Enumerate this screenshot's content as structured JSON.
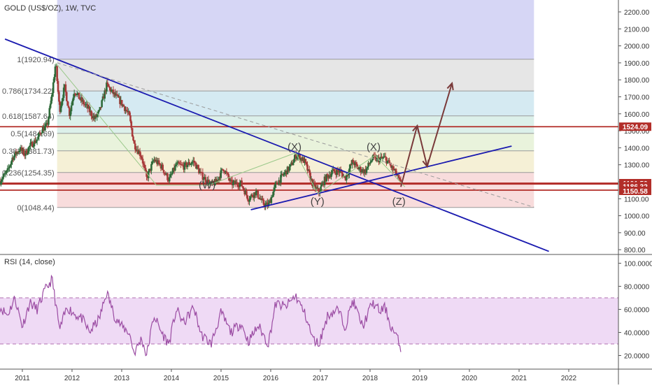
{
  "header": {
    "symbol_label": "GOLD (US$/OZ), 1W, TVC"
  },
  "rsi_pane": {
    "label": "RSI (14, close)"
  },
  "colors": {
    "fib_bands": [
      "#d6d6f5",
      "#e6e6e6",
      "#d5eaf2",
      "#dcf0ea",
      "#e9f3dc",
      "#f5f0d6",
      "#f8dcdc"
    ],
    "fib_line": "#999999",
    "trend_line": "#1a1aaf",
    "dashed_trend": "#9a9a9a",
    "price_band_line": "#b22d28",
    "candle_up": "#2f6b3a",
    "candle_down": "#a83a3a",
    "rsi_line": "#9b4ca3",
    "rsi_band": "#efdaf5",
    "forecast_arrow": "#7a3a3a",
    "wave_label": "#444444"
  },
  "chart_data": [
    {
      "type": "candlestick",
      "title": "GOLD (US$/OZ), 1W, TVC",
      "ylim": [
        780,
        2270
      ],
      "x_range": [
        2010.55,
        2023.0
      ],
      "x_ticks": [
        {
          "x": 2011,
          "label": "2011"
        },
        {
          "x": 2012,
          "label": "2012"
        },
        {
          "x": 2013,
          "label": "2013"
        },
        {
          "x": 2014,
          "label": "2014"
        },
        {
          "x": 2015,
          "label": "2015"
        },
        {
          "x": 2016,
          "label": "2016"
        },
        {
          "x": 2017,
          "label": "2017"
        },
        {
          "x": 2018,
          "label": "2018"
        },
        {
          "x": 2019,
          "label": "2019"
        },
        {
          "x": 2020,
          "label": "2020"
        },
        {
          "x": 2021,
          "label": "2021"
        },
        {
          "x": 2022,
          "label": "2022"
        }
      ],
      "y_ticks": [
        "2200.00",
        "2100.00",
        "2000.00",
        "1900.00",
        "1800.00",
        "1700.00",
        "1600.00",
        "1500.00",
        "1400.00",
        "1300.00",
        "1200.00",
        "1100.00",
        "1000.00",
        "900.00",
        "800.00"
      ],
      "fib_levels": [
        {
          "ratio": "1",
          "price": 1920.94,
          "label": "1(1920.94)"
        },
        {
          "ratio": "0.786",
          "price": 1734.22,
          "label": "0.786(1734.22)"
        },
        {
          "ratio": "0.618",
          "price": 1587.64,
          "label": "0.618(1587.64)"
        },
        {
          "ratio": "0.5",
          "price": 1484.69,
          "label": "0.5(1484.69)"
        },
        {
          "ratio": "0.382",
          "price": 1381.73,
          "label": "0.382(1381.73)"
        },
        {
          "ratio": "0.236",
          "price": 1254.35,
          "label": "0.236(1254.35)"
        },
        {
          "ratio": "0",
          "price": 1048.44,
          "label": "0(1048.44)"
        }
      ],
      "fib_x_range": [
        2011.7,
        2021.3
      ],
      "price_tags": [
        {
          "price": 1524.09,
          "label": "1524.09"
        },
        {
          "price": 1191.59,
          "label": "1191.59"
        },
        {
          "price": 1186.32,
          "label": "1186.32"
        },
        {
          "price": 1150.58,
          "label": "1150.58"
        }
      ],
      "trend_lines": [
        {
          "x1": 2010.65,
          "y1": 2040,
          "x2": 2021.6,
          "y2": 790,
          "style": "solid"
        },
        {
          "x1": 2015.6,
          "y1": 1035,
          "x2": 2020.85,
          "y2": 1410,
          "style": "solid"
        },
        {
          "x1": 2011.7,
          "y1": 1900,
          "x2": 2021.3,
          "y2": 1050,
          "style": "dashed"
        }
      ],
      "wave_path": [
        {
          "x": 2011.67,
          "y": 1900
        },
        {
          "x": 2013.7,
          "y": 1180
        },
        {
          "x": 2014.75,
          "y": 1180
        },
        {
          "x": 2016.5,
          "y": 1370
        },
        {
          "x": 2016.95,
          "y": 1130
        },
        {
          "x": 2018.1,
          "y": 1355
        },
        {
          "x": 2018.7,
          "y": 1170
        }
      ],
      "forecast_path": [
        {
          "x": 2018.62,
          "y": 1170
        },
        {
          "x": 2018.95,
          "y": 1530
        },
        {
          "x": 2019.15,
          "y": 1290
        },
        {
          "x": 2019.65,
          "y": 1780
        }
      ],
      "wave_labels": [
        {
          "x": 2014.72,
          "y": 1160,
          "label": "(W)"
        },
        {
          "x": 2016.48,
          "y": 1385,
          "label": "(X)"
        },
        {
          "x": 2016.94,
          "y": 1065,
          "label": "(Y)"
        },
        {
          "x": 2018.07,
          "y": 1385,
          "label": "(X)"
        },
        {
          "x": 2018.58,
          "y": 1065,
          "label": "(Z)"
        }
      ],
      "price_series": [
        {
          "x": 2010.55,
          "y": 1205
        },
        {
          "x": 2010.7,
          "y": 1260
        },
        {
          "x": 2010.8,
          "y": 1340
        },
        {
          "x": 2010.95,
          "y": 1395
        },
        {
          "x": 2011.05,
          "y": 1360
        },
        {
          "x": 2011.15,
          "y": 1410
        },
        {
          "x": 2011.3,
          "y": 1450
        },
        {
          "x": 2011.4,
          "y": 1510
        },
        {
          "x": 2011.5,
          "y": 1530
        },
        {
          "x": 2011.6,
          "y": 1720
        },
        {
          "x": 2011.67,
          "y": 1900
        },
        {
          "x": 2011.75,
          "y": 1620
        },
        {
          "x": 2011.85,
          "y": 1760
        },
        {
          "x": 2011.95,
          "y": 1600
        },
        {
          "x": 2012.05,
          "y": 1740
        },
        {
          "x": 2012.15,
          "y": 1690
        },
        {
          "x": 2012.3,
          "y": 1640
        },
        {
          "x": 2012.45,
          "y": 1570
        },
        {
          "x": 2012.55,
          "y": 1610
        },
        {
          "x": 2012.7,
          "y": 1770
        },
        {
          "x": 2012.8,
          "y": 1730
        },
        {
          "x": 2012.95,
          "y": 1680
        },
        {
          "x": 2013.05,
          "y": 1640
        },
        {
          "x": 2013.15,
          "y": 1590
        },
        {
          "x": 2013.25,
          "y": 1420
        },
        {
          "x": 2013.4,
          "y": 1350
        },
        {
          "x": 2013.5,
          "y": 1220
        },
        {
          "x": 2013.65,
          "y": 1330
        },
        {
          "x": 2013.8,
          "y": 1290
        },
        {
          "x": 2013.95,
          "y": 1210
        },
        {
          "x": 2014.1,
          "y": 1300
        },
        {
          "x": 2014.25,
          "y": 1290
        },
        {
          "x": 2014.45,
          "y": 1320
        },
        {
          "x": 2014.6,
          "y": 1240
        },
        {
          "x": 2014.8,
          "y": 1180
        },
        {
          "x": 2014.9,
          "y": 1200
        },
        {
          "x": 2015.05,
          "y": 1280
        },
        {
          "x": 2015.2,
          "y": 1190
        },
        {
          "x": 2015.4,
          "y": 1190
        },
        {
          "x": 2015.55,
          "y": 1100
        },
        {
          "x": 2015.7,
          "y": 1140
        },
        {
          "x": 2015.85,
          "y": 1070
        },
        {
          "x": 2015.95,
          "y": 1060
        },
        {
          "x": 2016.1,
          "y": 1180
        },
        {
          "x": 2016.25,
          "y": 1240
        },
        {
          "x": 2016.4,
          "y": 1290
        },
        {
          "x": 2016.52,
          "y": 1360
        },
        {
          "x": 2016.68,
          "y": 1320
        },
        {
          "x": 2016.85,
          "y": 1180
        },
        {
          "x": 2016.97,
          "y": 1140
        },
        {
          "x": 2017.1,
          "y": 1220
        },
        {
          "x": 2017.25,
          "y": 1260
        },
        {
          "x": 2017.4,
          "y": 1260
        },
        {
          "x": 2017.5,
          "y": 1220
        },
        {
          "x": 2017.65,
          "y": 1320
        },
        {
          "x": 2017.75,
          "y": 1280
        },
        {
          "x": 2017.9,
          "y": 1260
        },
        {
          "x": 2018.05,
          "y": 1340
        },
        {
          "x": 2018.15,
          "y": 1330
        },
        {
          "x": 2018.3,
          "y": 1340
        },
        {
          "x": 2018.42,
          "y": 1290
        },
        {
          "x": 2018.52,
          "y": 1250
        },
        {
          "x": 2018.62,
          "y": 1185
        }
      ]
    },
    {
      "type": "line",
      "title": "RSI (14, close)",
      "ylim": [
        10,
        107
      ],
      "y_ticks": [
        "100.0000",
        "80.0000",
        "60.0000",
        "40.0000",
        "20.0000"
      ],
      "band": [
        30,
        70
      ],
      "series": [
        {
          "values": [
            {
              "x": 2010.55,
              "y": 62
            },
            {
              "x": 2010.7,
              "y": 55
            },
            {
              "x": 2010.85,
              "y": 70
            },
            {
              "x": 2011.0,
              "y": 45
            },
            {
              "x": 2011.15,
              "y": 66
            },
            {
              "x": 2011.3,
              "y": 60
            },
            {
              "x": 2011.45,
              "y": 76
            },
            {
              "x": 2011.6,
              "y": 86
            },
            {
              "x": 2011.75,
              "y": 42
            },
            {
              "x": 2011.9,
              "y": 62
            },
            {
              "x": 2012.05,
              "y": 56
            },
            {
              "x": 2012.2,
              "y": 52
            },
            {
              "x": 2012.35,
              "y": 40
            },
            {
              "x": 2012.55,
              "y": 52
            },
            {
              "x": 2012.7,
              "y": 75
            },
            {
              "x": 2012.85,
              "y": 55
            },
            {
              "x": 2013.0,
              "y": 45
            },
            {
              "x": 2013.15,
              "y": 40
            },
            {
              "x": 2013.25,
              "y": 22
            },
            {
              "x": 2013.4,
              "y": 35
            },
            {
              "x": 2013.5,
              "y": 20
            },
            {
              "x": 2013.65,
              "y": 55
            },
            {
              "x": 2013.8,
              "y": 40
            },
            {
              "x": 2013.95,
              "y": 30
            },
            {
              "x": 2014.1,
              "y": 60
            },
            {
              "x": 2014.25,
              "y": 48
            },
            {
              "x": 2014.45,
              "y": 62
            },
            {
              "x": 2014.6,
              "y": 38
            },
            {
              "x": 2014.8,
              "y": 30
            },
            {
              "x": 2015.0,
              "y": 57
            },
            {
              "x": 2015.2,
              "y": 40
            },
            {
              "x": 2015.4,
              "y": 48
            },
            {
              "x": 2015.55,
              "y": 32
            },
            {
              "x": 2015.75,
              "y": 46
            },
            {
              "x": 2015.95,
              "y": 30
            },
            {
              "x": 2016.1,
              "y": 65
            },
            {
              "x": 2016.3,
              "y": 62
            },
            {
              "x": 2016.5,
              "y": 72
            },
            {
              "x": 2016.7,
              "y": 55
            },
            {
              "x": 2016.85,
              "y": 34
            },
            {
              "x": 2016.97,
              "y": 30
            },
            {
              "x": 2017.15,
              "y": 55
            },
            {
              "x": 2017.35,
              "y": 60
            },
            {
              "x": 2017.5,
              "y": 45
            },
            {
              "x": 2017.65,
              "y": 68
            },
            {
              "x": 2017.85,
              "y": 45
            },
            {
              "x": 2018.05,
              "y": 66
            },
            {
              "x": 2018.2,
              "y": 58
            },
            {
              "x": 2018.3,
              "y": 62
            },
            {
              "x": 2018.42,
              "y": 45
            },
            {
              "x": 2018.55,
              "y": 35
            },
            {
              "x": 2018.62,
              "y": 25
            }
          ]
        }
      ]
    }
  ]
}
